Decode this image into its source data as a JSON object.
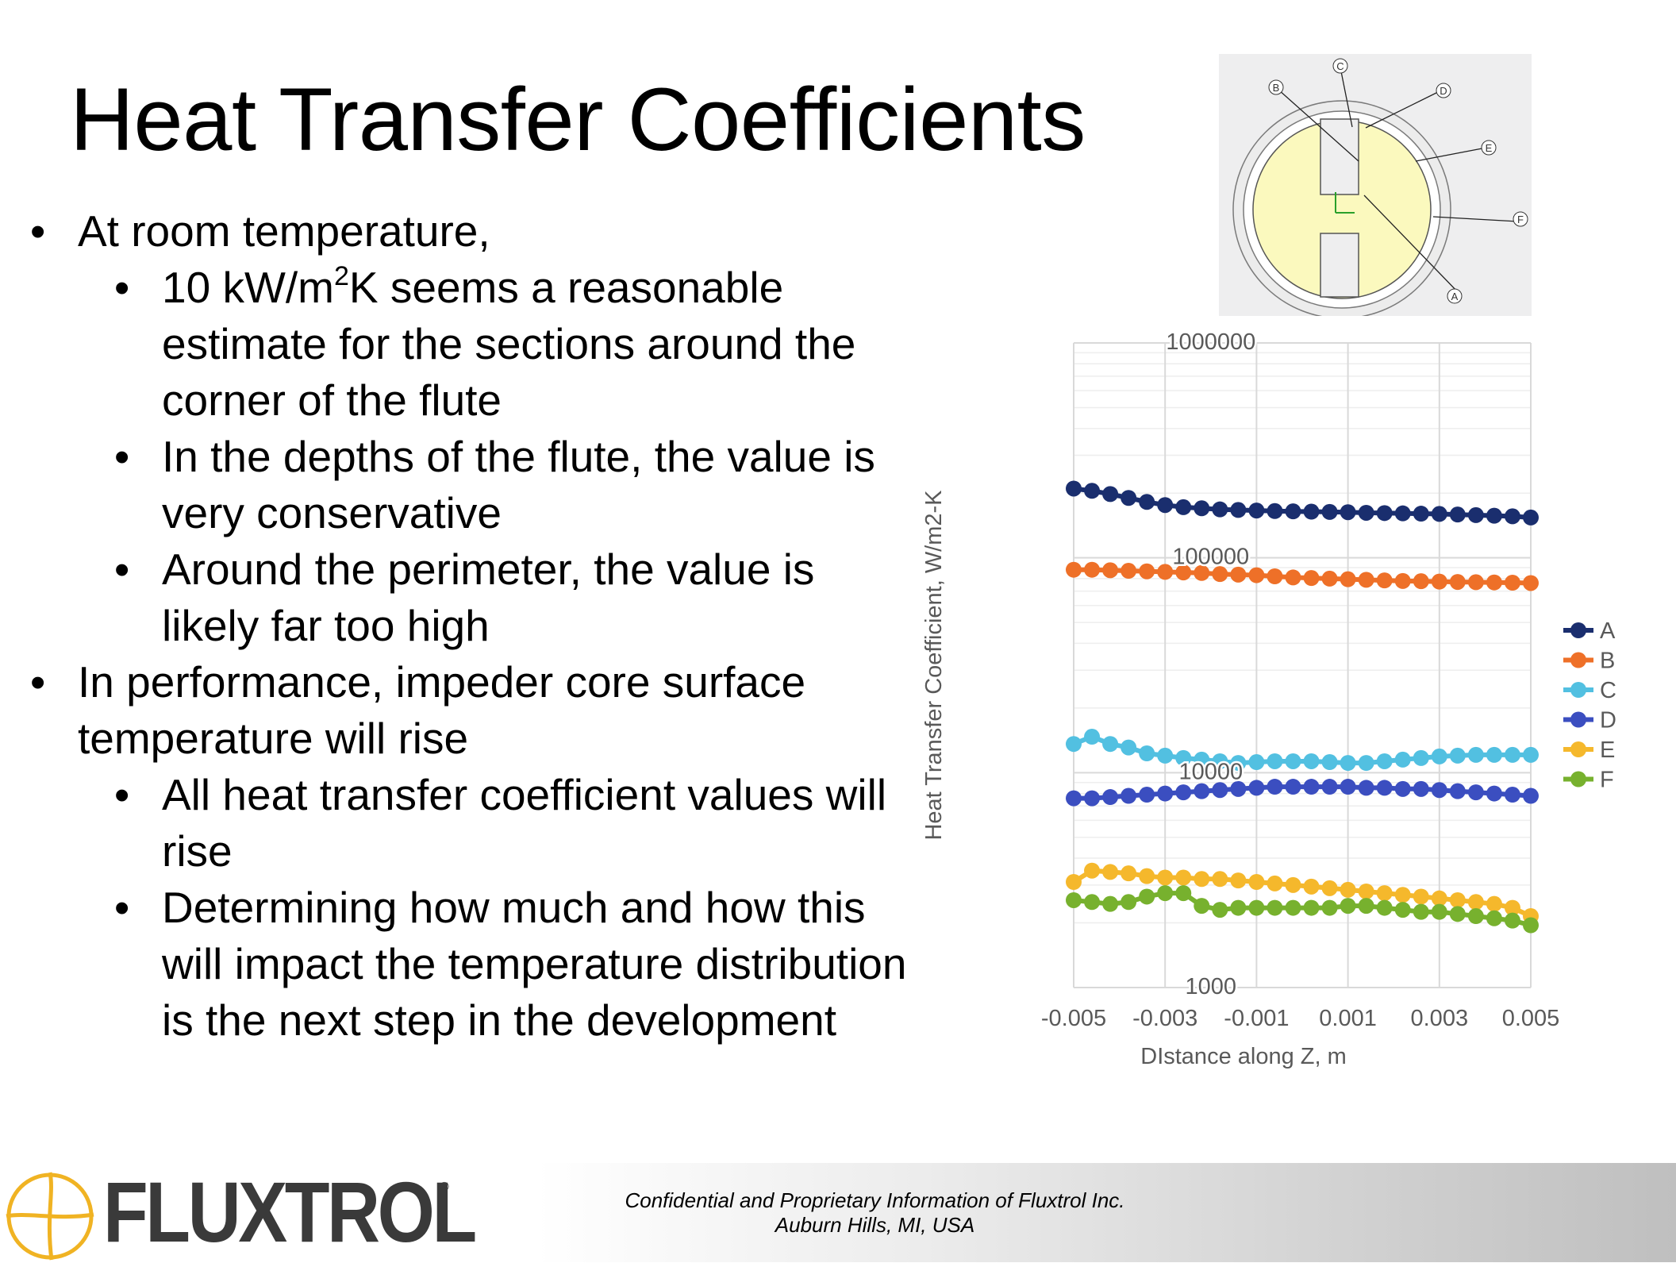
{
  "slide": {
    "title": "Heat Transfer Coefficients",
    "bullets": [
      {
        "level": 1,
        "text": "At room temperature,"
      },
      {
        "level": 2,
        "pre": "10 kW/m",
        "sup": "2",
        "post": "K seems a reasonable estimate for the sections around the corner of the flute"
      },
      {
        "level": 2,
        "text": "In the depths of the flute, the value is very conservative"
      },
      {
        "level": 2,
        "text": "Around the perimeter, the value is likely far too high"
      },
      {
        "level": 1,
        "text": "In performance, impeder core surface temperature will rise"
      },
      {
        "level": 2,
        "text": "All heat transfer coefficient values will rise"
      },
      {
        "level": 2,
        "text": "Determining how much and how this will impact the temperature distribution is the next step in the development"
      }
    ]
  },
  "diagram": {
    "labels": [
      "A",
      "B",
      "C",
      "D",
      "E",
      "F"
    ],
    "colors": {
      "core": "#fbf9be",
      "ring": "#e8e8e8",
      "background": "#eeeeef"
    }
  },
  "chart_data": {
    "type": "line",
    "title": "",
    "xlabel": "DIstance along Z, m",
    "ylabel": "Heat Transfer Coefficient, W/m2-K",
    "y_scale": "log",
    "ylim": [
      1000,
      1000000
    ],
    "xlim": [
      -0.005,
      0.005
    ],
    "x_ticks": [
      "-0.005",
      "-0.003",
      "-0.001",
      "0.001",
      "0.003",
      "0.005"
    ],
    "y_ticks": [
      "1000",
      "10000",
      "100000",
      "1000000"
    ],
    "grid": true,
    "legend": "right",
    "x": [
      -0.005,
      -0.0046,
      -0.0042,
      -0.0038,
      -0.0034,
      -0.003,
      -0.0026,
      -0.0022,
      -0.0018,
      -0.0014,
      -0.001,
      -0.0006,
      -0.0002,
      0.0002,
      0.0006,
      0.001,
      0.0014,
      0.0018,
      0.0022,
      0.0026,
      0.003,
      0.0034,
      0.0038,
      0.0042,
      0.0046,
      0.005
    ],
    "series": [
      {
        "name": "A",
        "color": "#1a2e6e",
        "values": [
          210000,
          205000,
          198000,
          190000,
          182000,
          176000,
          172000,
          170000,
          168000,
          167000,
          166000,
          165000,
          164500,
          164000,
          163500,
          163000,
          162000,
          161500,
          161000,
          160500,
          160000,
          159000,
          158000,
          157000,
          156000,
          154000
        ]
      },
      {
        "name": "B",
        "color": "#ee7028",
        "values": [
          88000,
          88000,
          87500,
          87000,
          86500,
          86000,
          85500,
          85000,
          84000,
          83500,
          83000,
          82000,
          81000,
          80500,
          80000,
          79500,
          79000,
          78500,
          78000,
          77800,
          77500,
          77200,
          77000,
          76800,
          76600,
          76300
        ]
      },
      {
        "name": "C",
        "color": "#52c0e1",
        "values": [
          13600,
          14700,
          13600,
          13100,
          12300,
          12000,
          11700,
          11500,
          11300,
          11100,
          11200,
          11300,
          11300,
          11300,
          11200,
          11100,
          11100,
          11300,
          11500,
          11700,
          11900,
          12000,
          12100,
          12100,
          12100,
          12100
        ]
      },
      {
        "name": "D",
        "color": "#3b4ec0",
        "values": [
          7600,
          7600,
          7700,
          7800,
          7900,
          8000,
          8100,
          8200,
          8300,
          8400,
          8500,
          8600,
          8600,
          8600,
          8600,
          8600,
          8500,
          8500,
          8400,
          8400,
          8300,
          8200,
          8100,
          8000,
          7900,
          7800
        ]
      },
      {
        "name": "E",
        "color": "#f5b82c",
        "values": [
          3100,
          3500,
          3450,
          3400,
          3300,
          3250,
          3250,
          3200,
          3200,
          3150,
          3100,
          3050,
          3000,
          2950,
          2900,
          2850,
          2800,
          2750,
          2700,
          2650,
          2600,
          2550,
          2500,
          2450,
          2350,
          2150
        ]
      },
      {
        "name": "F",
        "color": "#77b12e",
        "values": [
          2550,
          2500,
          2450,
          2500,
          2650,
          2750,
          2750,
          2400,
          2300,
          2350,
          2350,
          2350,
          2350,
          2350,
          2350,
          2400,
          2400,
          2350,
          2300,
          2250,
          2250,
          2200,
          2150,
          2100,
          2050,
          1950
        ]
      }
    ]
  },
  "footer": {
    "company_logo": "FLUXTROL",
    "registered_mark": "®",
    "line1": "Confidential and Proprietary Information of Fluxtrol Inc.",
    "line2": "Auburn Hills, MI, USA"
  }
}
